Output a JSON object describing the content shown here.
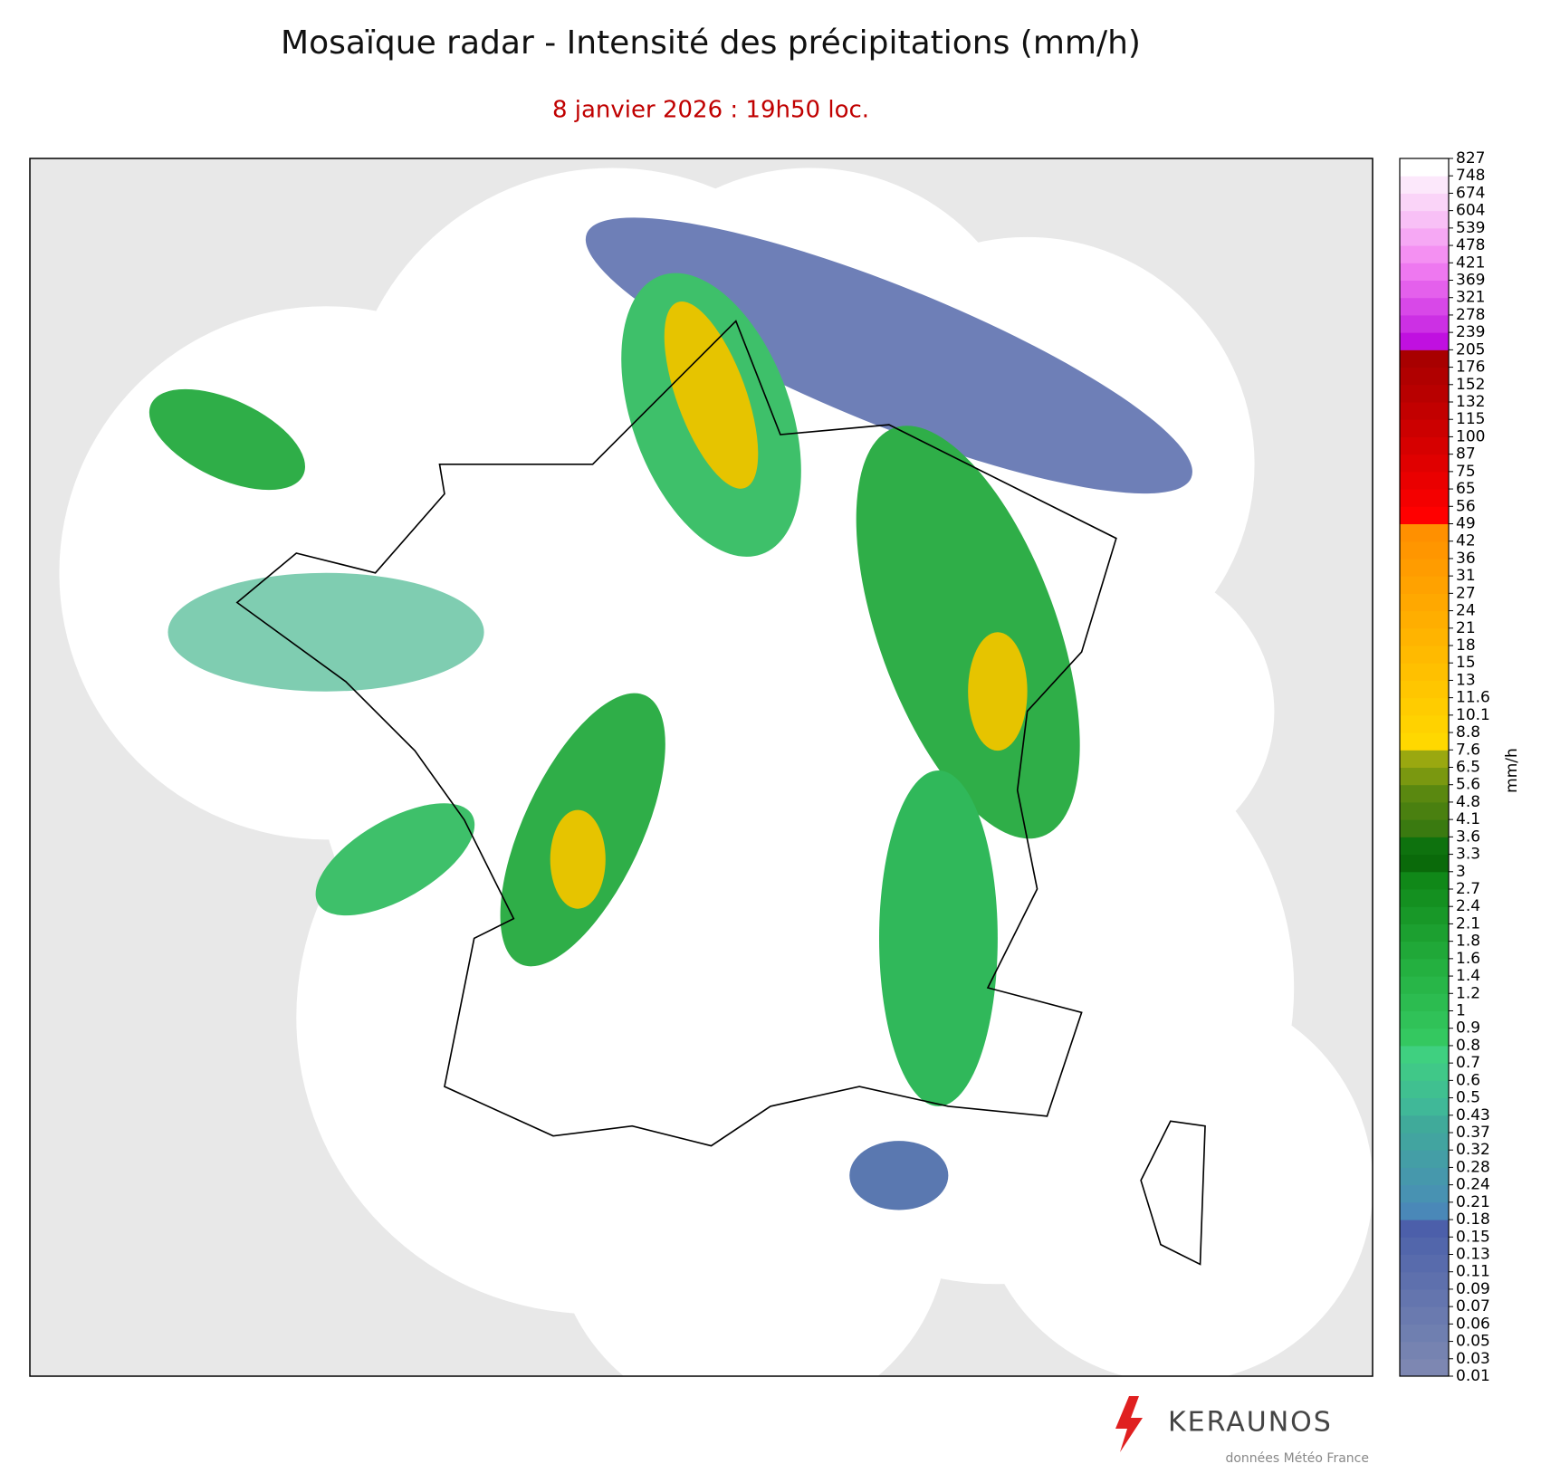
{
  "header": {
    "title": "Mosaïque radar - Intensité des précipitations (mm/h)",
    "subtitle": "8 janvier 2026 : 19h50 loc."
  },
  "colorbar": {
    "label": "mm/h",
    "ticks": [
      0.01,
      0.03,
      0.05,
      0.06,
      0.07,
      0.09,
      0.11,
      0.13,
      0.15,
      0.18,
      0.21,
      0.24,
      0.28,
      0.32,
      0.37,
      0.43,
      0.5,
      0.6,
      0.7,
      0.8,
      0.9,
      1,
      1.2,
      1.4,
      1.6,
      1.8,
      2.1,
      2.4,
      2.7,
      3,
      3.3,
      3.6,
      4.1,
      4.8,
      5.6,
      6.5,
      7.6,
      8.8,
      10.1,
      11.6,
      13,
      15,
      18,
      21,
      24,
      27,
      31,
      36,
      42,
      49,
      56,
      65,
      75,
      87,
      100,
      115,
      132,
      152,
      176,
      205,
      239,
      278,
      321,
      369,
      421,
      478,
      539,
      604,
      674,
      748,
      827
    ],
    "colors": [
      "#7d87b2",
      "#7683b1",
      "#6f7fb0",
      "#6a7aaf",
      "#6475ae",
      "#5e70ad",
      "#586bac",
      "#5266ab",
      "#4c5faa",
      "#4a88b8",
      "#4892b2",
      "#4698ac",
      "#449ea6",
      "#42a4a0",
      "#40aa9a",
      "#40b898",
      "#40c090",
      "#40c888",
      "#3fd080",
      "#34c860",
      "#30c258",
      "#2cbc50",
      "#28b648",
      "#24b040",
      "#20a838",
      "#1ca030",
      "#189828",
      "#149020",
      "#108818",
      "#0a6a0a",
      "#0e720e",
      "#3a7a10",
      "#4a8010",
      "#5a8810",
      "#7a9810",
      "#9aa810",
      "#ffd800",
      "#ffd200",
      "#ffcc00",
      "#ffc600",
      "#ffc000",
      "#ffba00",
      "#ffb400",
      "#ffae00",
      "#ffa800",
      "#ffa200",
      "#ff9c00",
      "#ff9600",
      "#ff9000",
      "#ff0000",
      "#f40000",
      "#ea0000",
      "#e00000",
      "#d60000",
      "#cc0000",
      "#c20000",
      "#b80000",
      "#b00000",
      "#a80000",
      "#c010e0",
      "#cc30e4",
      "#d848e8",
      "#e460ec",
      "#ee78f0",
      "#f490f2",
      "#f6a8f4",
      "#f8c0f6",
      "#fad4f8",
      "#fce8fb",
      "#ffffff"
    ]
  },
  "logo": {
    "brand": "KERAUNOS",
    "credit": "données Météo France"
  }
}
